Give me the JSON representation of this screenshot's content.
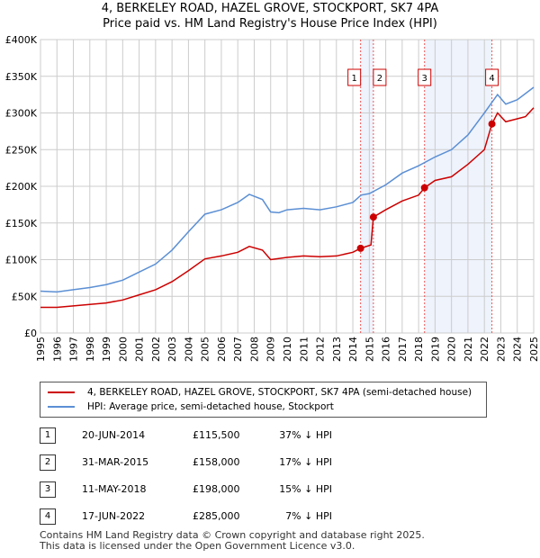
{
  "chart_data": {
    "type": "line",
    "title": "4, BERKELEY ROAD, HAZEL GROVE, STOCKPORT, SK7 4PA",
    "subtitle": "Price paid vs. HM Land Registry's House Price Index (HPI)",
    "ylim": [
      0,
      400000
    ],
    "xlim": [
      1995,
      2025
    ],
    "yticks": [
      {
        "v": 0,
        "label": "£0"
      },
      {
        "v": 50000,
        "label": "£50K"
      },
      {
        "v": 100000,
        "label": "£100K"
      },
      {
        "v": 150000,
        "label": "£150K"
      },
      {
        "v": 200000,
        "label": "£200K"
      },
      {
        "v": 250000,
        "label": "£250K"
      },
      {
        "v": 300000,
        "label": "£300K"
      },
      {
        "v": 350000,
        "label": "£350K"
      },
      {
        "v": 400000,
        "label": "£400K"
      }
    ],
    "xticks": [
      "1995",
      "1996",
      "1997",
      "1998",
      "1999",
      "2000",
      "2001",
      "2002",
      "2003",
      "2004",
      "2005",
      "2006",
      "2007",
      "2008",
      "2009",
      "2010",
      "2011",
      "2012",
      "2013",
      "2014",
      "2015",
      "2016",
      "2017",
      "2018",
      "2019",
      "2020",
      "2021",
      "2022",
      "2023",
      "2024",
      "2025"
    ],
    "grid": true,
    "series": [
      {
        "name": "4, BERKELEY ROAD, HAZEL GROVE, STOCKPORT, SK7 4PA (semi-detached house)",
        "color": "#cc0000",
        "x": [
          1995,
          1996,
          1997,
          1998,
          1999,
          2000,
          2001,
          2002,
          2003,
          2004,
          2005,
          2006,
          2007,
          2007.7,
          2008.5,
          2009,
          2010,
          2011,
          2012,
          2013,
          2014,
          2014.47,
          2015.1,
          2015.25,
          2016,
          2017,
          2018,
          2018.36,
          2019,
          2020,
          2021,
          2022,
          2022.46,
          2022.8,
          2023.3,
          2024,
          2024.5,
          2025
        ],
        "y": [
          35000,
          35000,
          37000,
          39000,
          41000,
          45000,
          52000,
          59000,
          70000,
          85000,
          101000,
          105000,
          110000,
          118000,
          113000,
          100000,
          103000,
          105000,
          104000,
          105000,
          110000,
          115500,
          120000,
          158000,
          168000,
          180000,
          188000,
          198000,
          208000,
          213000,
          230000,
          250000,
          285000,
          300000,
          288000,
          292000,
          295000,
          307000
        ]
      },
      {
        "name": "HPI: Average price, semi-detached house, Stockport",
        "color": "#5b8fd4",
        "x": [
          1995,
          1996,
          1997,
          1998,
          1999,
          2000,
          2001,
          2002,
          2003,
          2004,
          2005,
          2006,
          2007,
          2007.7,
          2008.5,
          2009,
          2009.5,
          2010,
          2011,
          2012,
          2013,
          2014,
          2014.5,
          2015,
          2016,
          2017,
          2018,
          2019,
          2020,
          2021,
          2022,
          2022.8,
          2023.3,
          2024,
          2025
        ],
        "y": [
          57000,
          56000,
          59000,
          62000,
          66000,
          72000,
          83000,
          94000,
          113000,
          138000,
          162000,
          168000,
          178000,
          189000,
          182000,
          165000,
          164000,
          168000,
          170000,
          168000,
          172000,
          178000,
          188000,
          190000,
          202000,
          218000,
          228000,
          240000,
          250000,
          270000,
          300000,
          325000,
          312000,
          318000,
          335000
        ]
      }
    ],
    "sales": [
      {
        "n": "1",
        "x": 2014.47,
        "y": 115500,
        "date": "20-JUN-2014",
        "price": "£115,500",
        "hpi": "37% ↓ HPI"
      },
      {
        "n": "2",
        "x": 2015.25,
        "y": 158000,
        "date": "31-MAR-2015",
        "price": "£158,000",
        "hpi": "17% ↓ HPI"
      },
      {
        "n": "3",
        "x": 2018.36,
        "y": 198000,
        "date": "11-MAY-2018",
        "price": "£198,000",
        "hpi": "15% ↓ HPI"
      },
      {
        "n": "4",
        "x": 2022.46,
        "y": 285000,
        "date": "17-JUN-2022",
        "price": "£285,000",
        "hpi": "7% ↓ HPI"
      }
    ],
    "footer": [
      "Contains HM Land Registry data © Crown copyright and database right 2025.",
      "This data is licensed under the Open Government Licence v3.0."
    ]
  }
}
